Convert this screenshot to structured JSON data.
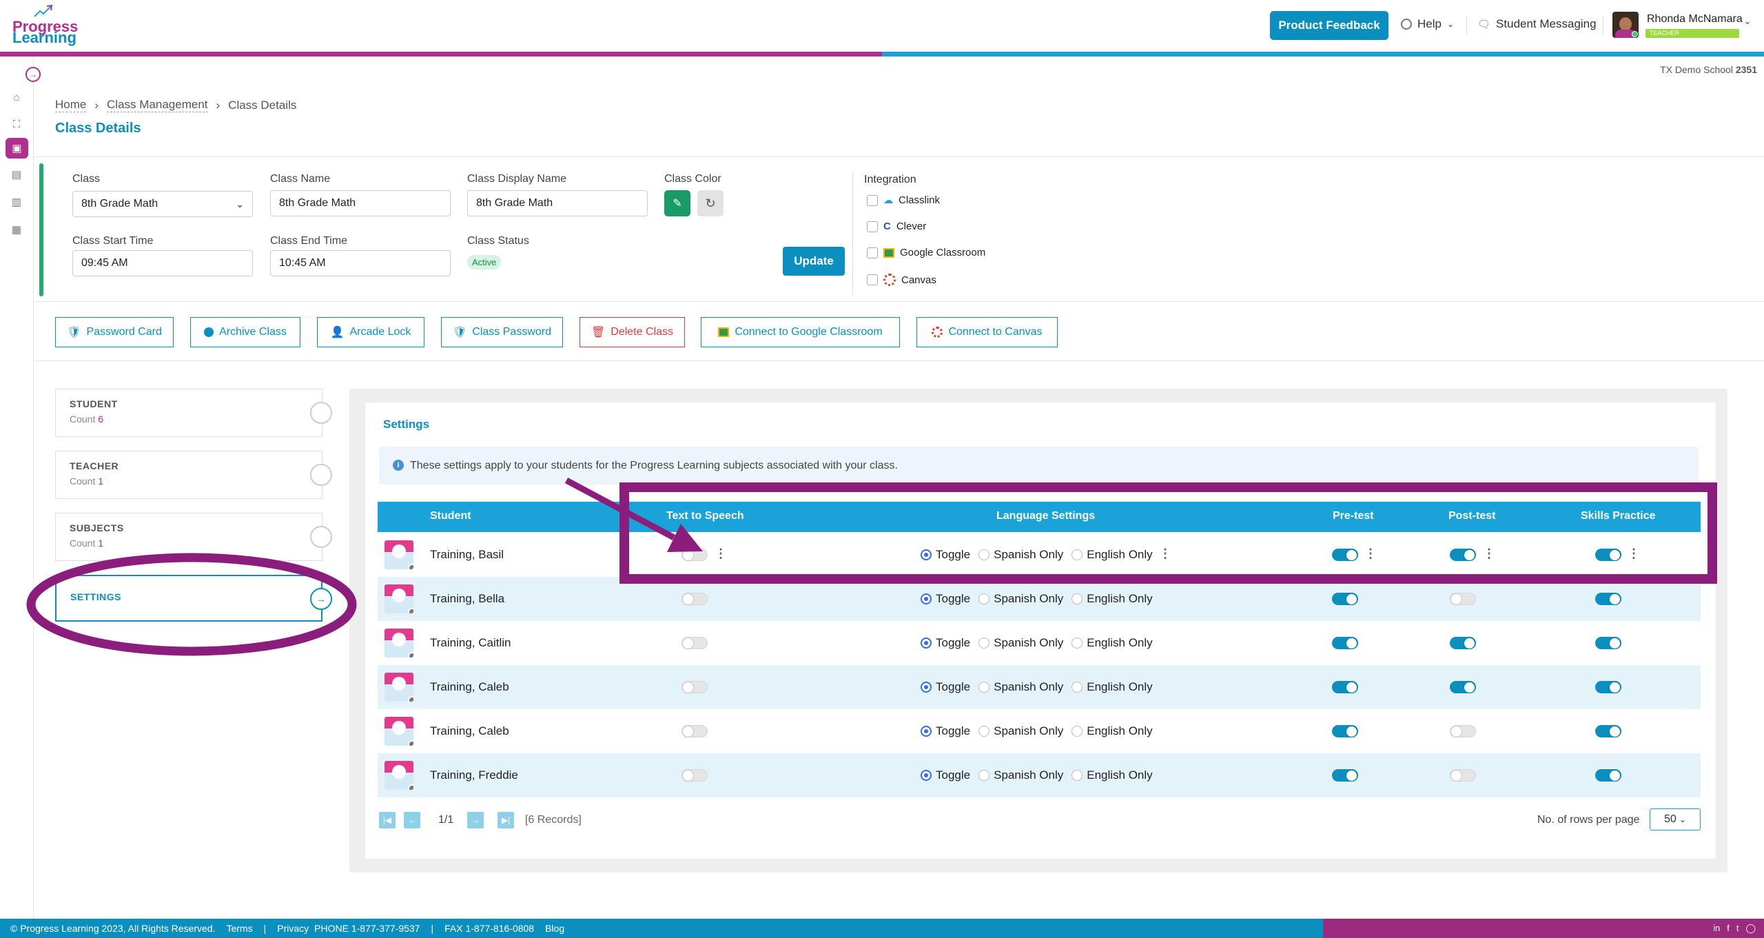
{
  "brand": {
    "name_line1": "Progress",
    "name_line2": "Learning"
  },
  "header": {
    "feedback_label": "Product Feedback",
    "help_label": "Help",
    "messaging_label": "Student Messaging",
    "user_name": "Rhonda McNamara",
    "user_role": "TEACHER"
  },
  "school": {
    "name": "TX Demo School",
    "id": "2351"
  },
  "breadcrumb": {
    "home": "Home",
    "class_mgmt": "Class Management",
    "current": "Class Details"
  },
  "page_title": "Class Details",
  "form": {
    "class_label": "Class",
    "class_value": "8th Grade Math",
    "name_label": "Class Name",
    "name_value": "8th Grade Math",
    "display_label": "Class Display Name",
    "display_value": "8th Grade Math",
    "color_label": "Class Color",
    "start_label": "Class Start Time",
    "start_value": "09:45 AM",
    "end_label": "Class End Time",
    "end_value": "10:45 AM",
    "status_label": "Class Status",
    "status_value": "Active",
    "update_label": "Update"
  },
  "integration": {
    "title": "Integration",
    "items": [
      "Classlink",
      "Clever",
      "Google Classroom",
      "Canvas"
    ]
  },
  "actions": [
    "Password Card",
    "Archive Class",
    "Arcade Lock",
    "Class Password",
    "Delete Class",
    "Connect to Google Classroom",
    "Connect to Canvas"
  ],
  "tabs": [
    {
      "label": "STUDENT",
      "count_label": "Count",
      "count": "6"
    },
    {
      "label": "TEACHER",
      "count_label": "Count",
      "count": "1"
    },
    {
      "label": "SUBJECTS",
      "count_label": "Count",
      "count": "1"
    },
    {
      "label": "SETTINGS"
    }
  ],
  "settings": {
    "title": "Settings",
    "info": "These settings apply to your students for the Progress Learning subjects associated with your class.",
    "columns": [
      "Student",
      "Text to Speech",
      "Language Settings",
      "Pre-test",
      "Post-test",
      "Skills Practice"
    ],
    "lang_options": [
      "Toggle",
      "Spanish Only",
      "English Only"
    ],
    "rows": [
      {
        "name": "Training, Basil",
        "tts": false,
        "lang": "Toggle",
        "pre": true,
        "post": true,
        "skills": true
      },
      {
        "name": "Training, Bella",
        "tts": false,
        "lang": "Toggle",
        "pre": true,
        "post": false,
        "skills": true
      },
      {
        "name": "Training, Caitlin",
        "tts": false,
        "lang": "Toggle",
        "pre": true,
        "post": true,
        "skills": true
      },
      {
        "name": "Training, Caleb",
        "tts": false,
        "lang": "Toggle",
        "pre": true,
        "post": true,
        "skills": true
      },
      {
        "name": "Training, Caleb",
        "tts": false,
        "lang": "Toggle",
        "pre": true,
        "post": false,
        "skills": true
      },
      {
        "name": "Training, Freddie",
        "tts": false,
        "lang": "Toggle",
        "pre": true,
        "post": false,
        "skills": true
      }
    ]
  },
  "pager": {
    "page": "1/1",
    "records": "[6 Records]",
    "rows_label": "No. of rows per page",
    "rows_value": "50"
  },
  "footer": {
    "copyright": "© Progress Learning 2023, All Rights Reserved.",
    "terms": "Terms",
    "sep": "|",
    "privacy": "Privacy",
    "phone": "PHONE 1-877-377-9537",
    "fax": "FAX 1-877-816-0808",
    "blog": "Blog"
  },
  "colors": {
    "brand_magenta": "#b0308e",
    "brand_blue": "#0b8fbf",
    "table_header": "#1ba3d9",
    "annotation": "#8b1e7c",
    "danger": "#e0383e"
  }
}
